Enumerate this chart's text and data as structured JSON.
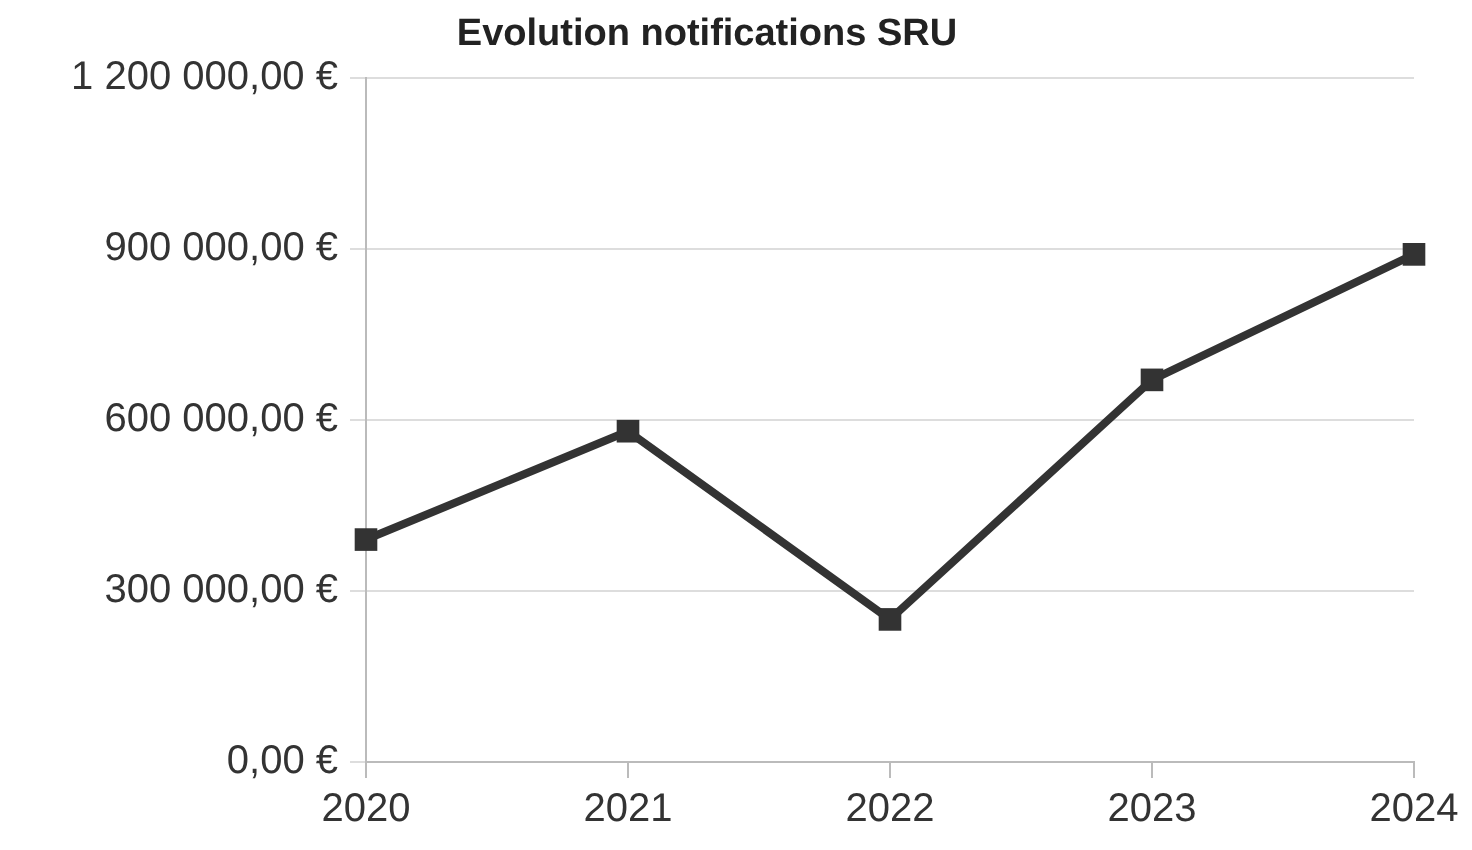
{
  "chart_data": {
    "type": "line",
    "title": "Evolution notifications SRU",
    "categories": [
      "2020",
      "2021",
      "2022",
      "2023",
      "2024"
    ],
    "series": [
      {
        "color": "#333333",
        "values": [
          390000,
          580000,
          250000,
          670000,
          890000
        ]
      }
    ],
    "ylim": [
      0,
      1200000
    ],
    "yticks": [
      {
        "value": 0,
        "label": "0,00 €"
      },
      {
        "value": 300000,
        "label": "300 000,00 €"
      },
      {
        "value": 600000,
        "label": "600 000,00 €"
      },
      {
        "value": 900000,
        "label": "900 000,00 €"
      },
      {
        "value": 1200000,
        "label": "1 200 000,00 €"
      }
    ],
    "grid": "y",
    "legend": false,
    "marker": "square",
    "line_style": "solid"
  }
}
